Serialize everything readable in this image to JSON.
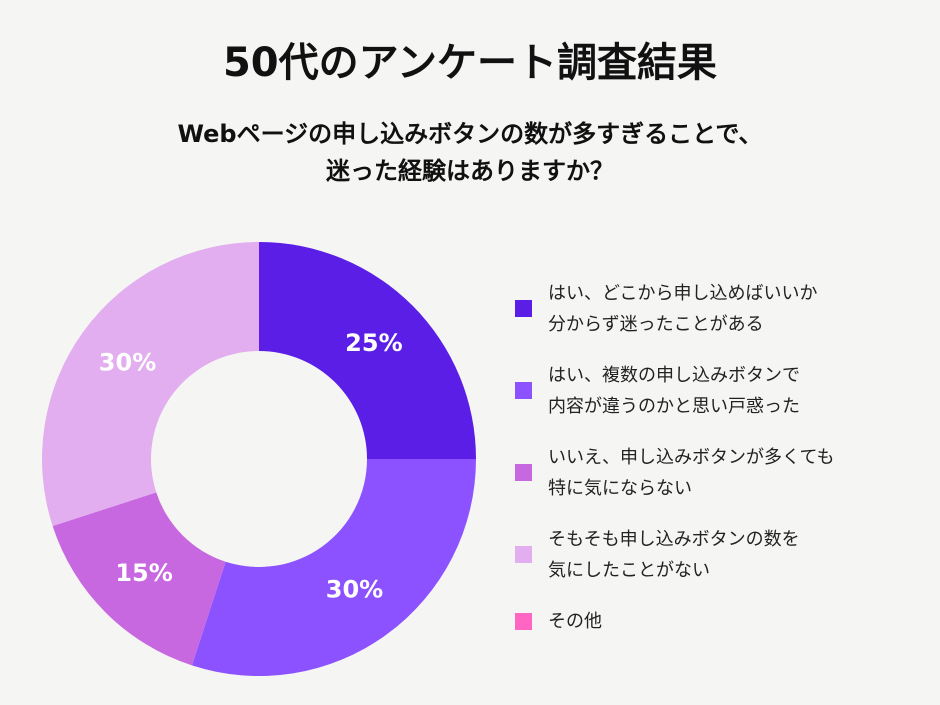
{
  "chart_data": {
    "type": "donut",
    "title": "50代のアンケート調査結果",
    "subtitle": "Webページの申し込みボタンの数が多すぎることで、\n迷った経験はありますか？",
    "categories": [
      "はい、どこから申し込めばいいか\n分からず迷ったことがある",
      "はい、複数の申し込みボタンで\n内容が違うのかと思い戸惑った",
      "いいえ、申し込みボタンが多くても\n特に気にならない",
      "そもそも申し込みボタンの数を\n気にしたことがない",
      "その他"
    ],
    "values": [
      25,
      30,
      15,
      30,
      0
    ],
    "value_labels": [
      "25%",
      "30%",
      "15%",
      "30%",
      null
    ],
    "colors": [
      "#5b1ee6",
      "#8c52ff",
      "#c768e0",
      "#e2aef0",
      "#ff66c4"
    ],
    "legend": "right"
  }
}
